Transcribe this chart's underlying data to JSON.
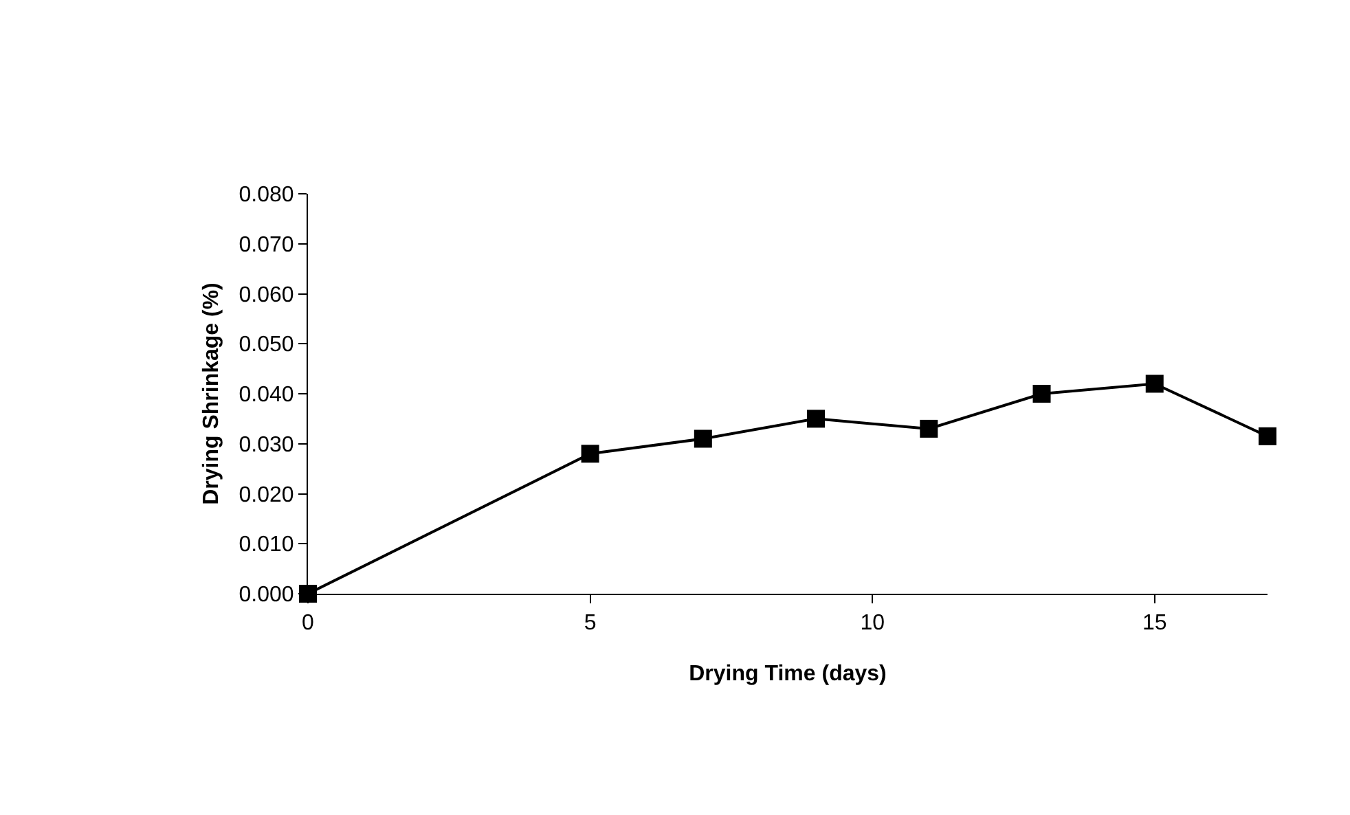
{
  "chart_data": {
    "type": "line",
    "xlabel": "Drying Time (days)",
    "ylabel": "Drying Shrinkage (%)",
    "x": [
      0,
      5,
      7,
      9,
      11,
      13,
      15,
      17
    ],
    "series": [
      {
        "color": "#000000",
        "values": [
          0.0,
          0.028,
          0.031,
          0.035,
          0.033,
          0.04,
          0.042,
          0.0315
        ]
      }
    ],
    "xlim": [
      0,
      17
    ],
    "xticks": [
      0,
      5,
      10,
      15
    ],
    "ylim": [
      0,
      0.08
    ],
    "yticks": [
      {
        "value": 0,
        "label": "0.000"
      },
      {
        "value": 0.01,
        "label": "0.010"
      },
      {
        "value": 0.02,
        "label": "0.020"
      },
      {
        "value": 0.03,
        "label": "0.030"
      },
      {
        "value": 0.04,
        "label": "0.040"
      },
      {
        "value": 0.05,
        "label": "0.050"
      },
      {
        "value": 0.06,
        "label": "0.060"
      },
      {
        "value": 0.07,
        "label": "0.070"
      },
      {
        "value": 0.08,
        "label": "0.080"
      }
    ],
    "legend": false,
    "marker": "square",
    "line_style": "solid"
  }
}
